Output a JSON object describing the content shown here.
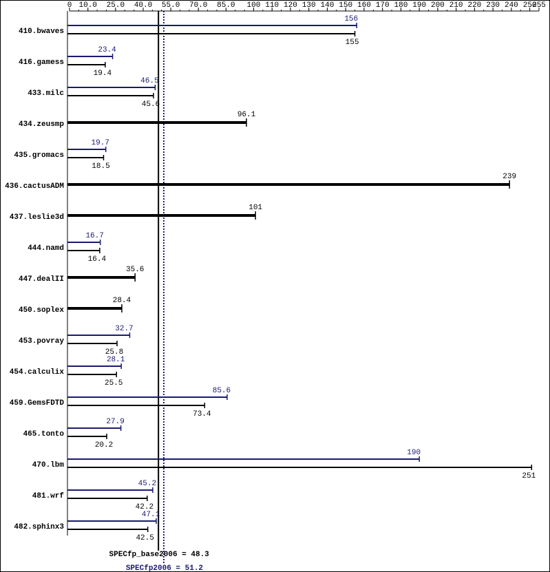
{
  "chart_data": {
    "type": "bar",
    "orientation": "horizontal",
    "categories": [
      "410.bwaves",
      "416.gamess",
      "433.milc",
      "434.zeusmp",
      "435.gromacs",
      "436.cactusADM",
      "437.leslie3d",
      "444.namd",
      "447.dealII",
      "450.soplex",
      "453.povray",
      "454.calculix",
      "459.GemsFDTD",
      "465.tonto",
      "470.lbm",
      "481.wrf",
      "482.sphinx3"
    ],
    "series": [
      {
        "color": "#191970",
        "values": [
          156,
          23.4,
          46.5,
          null,
          19.7,
          null,
          null,
          16.7,
          null,
          null,
          32.7,
          28.1,
          85.6,
          27.9,
          190,
          45.2,
          47.1
        ]
      },
      {
        "color": "#000000",
        "values": [
          155,
          19.4,
          45.6,
          96.1,
          18.5,
          239,
          101,
          16.4,
          35.6,
          28.4,
          25.8,
          25.5,
          73.4,
          20.2,
          251,
          42.2,
          42.5
        ]
      }
    ],
    "xlim": [
      0,
      255
    ],
    "xticks": [
      0,
      {
        "value": 10,
        "label": "10.0"
      },
      {
        "value": 25,
        "label": "25.0"
      },
      {
        "value": 40,
        "label": "40.0"
      },
      {
        "value": 55,
        "label": "55.0"
      },
      {
        "value": 70,
        "label": "70.0"
      },
      {
        "value": 85,
        "label": "85.0"
      },
      100,
      110,
      120,
      130,
      140,
      150,
      160,
      170,
      180,
      190,
      200,
      210,
      220,
      230,
      240,
      250,
      255
    ],
    "reference_lines": [
      {
        "value": 48.3,
        "label": "SPECfp_base2006 = 48.3",
        "color": "#000000",
        "style": "solid"
      },
      {
        "value": 51.2,
        "label": "SPECfp2006 = 51.2",
        "color": "#191970",
        "style": "dotted"
      }
    ]
  }
}
